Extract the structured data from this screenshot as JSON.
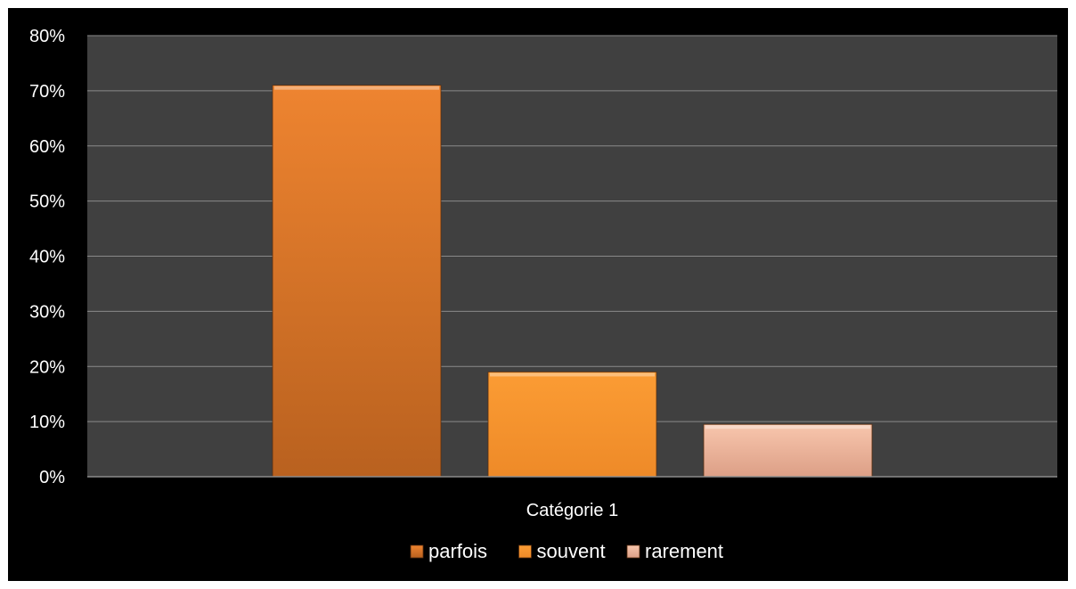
{
  "chart_data": {
    "type": "bar",
    "categories": [
      "Catégorie 1"
    ],
    "series": [
      {
        "name": "parfois",
        "values": [
          0.71
        ],
        "color": "#e0782a"
      },
      {
        "name": "souvent",
        "values": [
          0.19
        ],
        "color": "#f7962e"
      },
      {
        "name": "rarement",
        "values": [
          0.095
        ],
        "color": "#f2b59a"
      }
    ],
    "ylim": [
      0,
      0.8
    ],
    "yticks": [
      "0%",
      "10%",
      "20%",
      "30%",
      "40%",
      "50%",
      "60%",
      "70%",
      "80%"
    ],
    "grid": true,
    "legend": "bottom",
    "plot_background": "#404040",
    "background": "#000000"
  }
}
